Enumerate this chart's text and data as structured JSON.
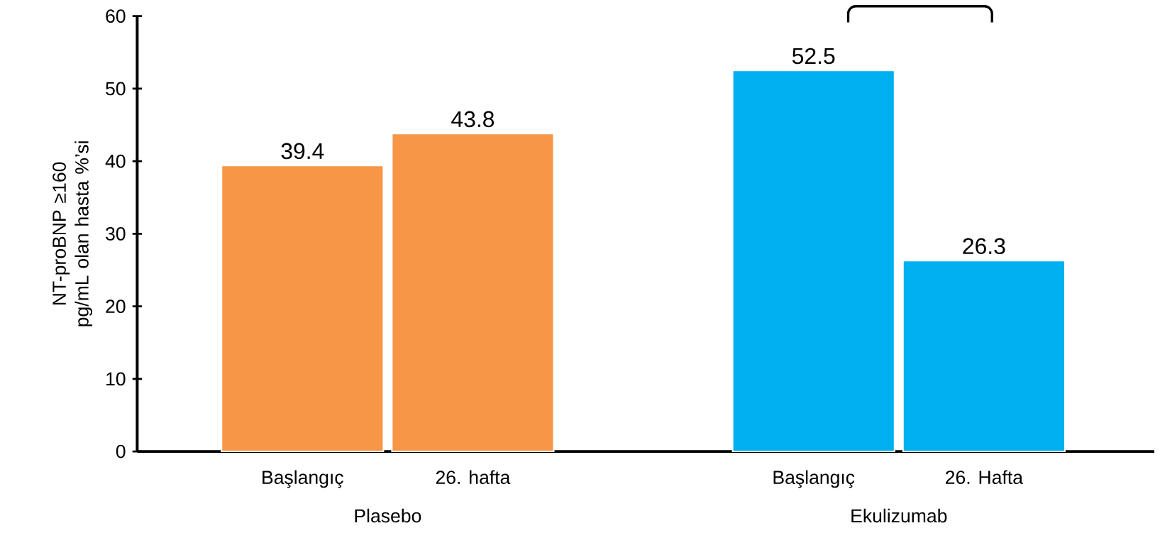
{
  "chart_data": {
    "type": "bar",
    "ylabel": "NT-proBNP ≥160 pg/mL olan hasta %’si",
    "categories": [
      "Başlangıç",
      "26. hafta",
      "Başlangıç",
      "26. Hafta"
    ],
    "values": [
      39.4,
      43.8,
      52.5,
      26.3
    ],
    "colors": [
      "#f79646",
      "#f79646",
      "#00b0f0",
      "#00b0f0"
    ],
    "ylim": [
      0,
      60
    ],
    "yticks": [
      0,
      10,
      20,
      30,
      40,
      50,
      60
    ],
    "data_labels": true,
    "annotations": [
      "Plasebo",
      "Ekulizumab"
    ]
  }
}
